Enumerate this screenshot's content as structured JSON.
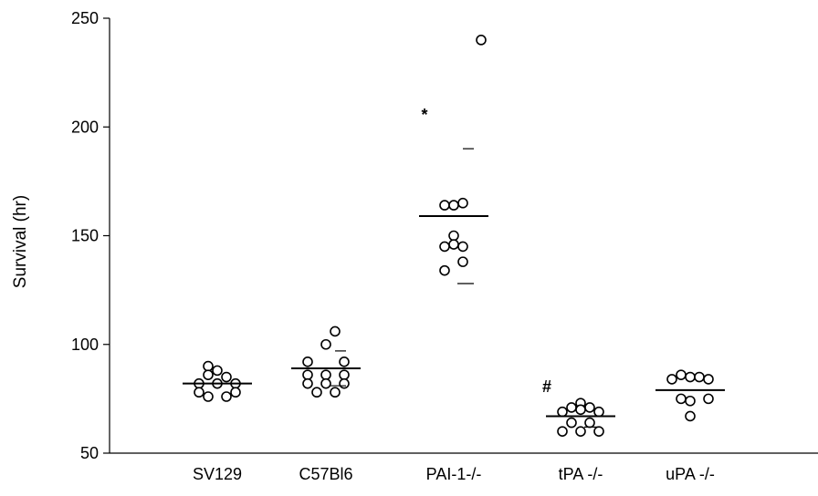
{
  "chart_data": {
    "type": "scatter",
    "title": "",
    "xlabel": "",
    "ylabel": "Survival (hr)",
    "ylim": [
      50,
      250
    ],
    "yticks": [
      50,
      100,
      150,
      200,
      250
    ],
    "grid": false,
    "legend": "none",
    "categories": [
      "SV129",
      "C57Bl6",
      "PAI-1-/-",
      "tPA -/-",
      "uPA -/-"
    ],
    "groups": [
      {
        "category": "SV129",
        "points": [
          {
            "offset": -1,
            "value": 90
          },
          {
            "offset": 0,
            "value": 88
          },
          {
            "offset": -1,
            "value": 86
          },
          {
            "offset": 1,
            "value": 85
          },
          {
            "offset": -2,
            "value": 82
          },
          {
            "offset": 0,
            "value": 82
          },
          {
            "offset": 2,
            "value": 82
          },
          {
            "offset": -2,
            "value": 78
          },
          {
            "offset": 2,
            "value": 78
          },
          {
            "offset": -1,
            "value": 76
          },
          {
            "offset": 1,
            "value": 76
          }
        ],
        "mean": 82,
        "sd_upper": null,
        "sd_lower": null
      },
      {
        "category": "C57Bl6",
        "points": [
          {
            "offset": 1,
            "value": 106
          },
          {
            "offset": 0,
            "value": 100
          },
          {
            "offset": -2,
            "value": 92
          },
          {
            "offset": 2,
            "value": 92
          },
          {
            "offset": -2,
            "value": 86
          },
          {
            "offset": 0,
            "value": 86
          },
          {
            "offset": 2,
            "value": 86
          },
          {
            "offset": -2,
            "value": 82
          },
          {
            "offset": 0,
            "value": 82
          },
          {
            "offset": 2,
            "value": 82
          },
          {
            "offset": -1,
            "value": 78
          },
          {
            "offset": 1,
            "value": 78
          }
        ],
        "mean": 89,
        "sd_upper": 97,
        "sd_lower": 81
      },
      {
        "category": "PAI-1-/-",
        "points": [
          {
            "offset": 3,
            "value": 240
          },
          {
            "offset": -1,
            "value": 164
          },
          {
            "offset": 0,
            "value": 164
          },
          {
            "offset": 1,
            "value": 165
          },
          {
            "offset": 0,
            "value": 150
          },
          {
            "offset": -1,
            "value": 145
          },
          {
            "offset": 0,
            "value": 146
          },
          {
            "offset": 1,
            "value": 145
          },
          {
            "offset": 1,
            "value": 138
          },
          {
            "offset": -1,
            "value": 134
          }
        ],
        "mean": 159,
        "sd_upper": 190,
        "sd_lower": 128,
        "annotation": "*"
      },
      {
        "category": "tPA -/-",
        "points": [
          {
            "offset": 0,
            "value": 73
          },
          {
            "offset": -1,
            "value": 71
          },
          {
            "offset": 1,
            "value": 71
          },
          {
            "offset": -2,
            "value": 69
          },
          {
            "offset": 0,
            "value": 70
          },
          {
            "offset": 2,
            "value": 69
          },
          {
            "offset": -1,
            "value": 64
          },
          {
            "offset": 1,
            "value": 64
          },
          {
            "offset": -2,
            "value": 60
          },
          {
            "offset": 0,
            "value": 60
          },
          {
            "offset": 2,
            "value": 60
          }
        ],
        "mean": 67,
        "sd_upper": null,
        "sd_lower": 62,
        "annotation": "#"
      },
      {
        "category": "uPA -/-",
        "points": [
          {
            "offset": -1,
            "value": 86
          },
          {
            "offset": 0,
            "value": 85
          },
          {
            "offset": 1,
            "value": 85
          },
          {
            "offset": -2,
            "value": 84
          },
          {
            "offset": 2,
            "value": 84
          },
          {
            "offset": -1,
            "value": 75
          },
          {
            "offset": 0,
            "value": 74
          },
          {
            "offset": 2,
            "value": 75
          },
          {
            "offset": 0,
            "value": 67
          }
        ],
        "mean": 79,
        "sd_upper": null,
        "sd_lower": null
      }
    ]
  }
}
